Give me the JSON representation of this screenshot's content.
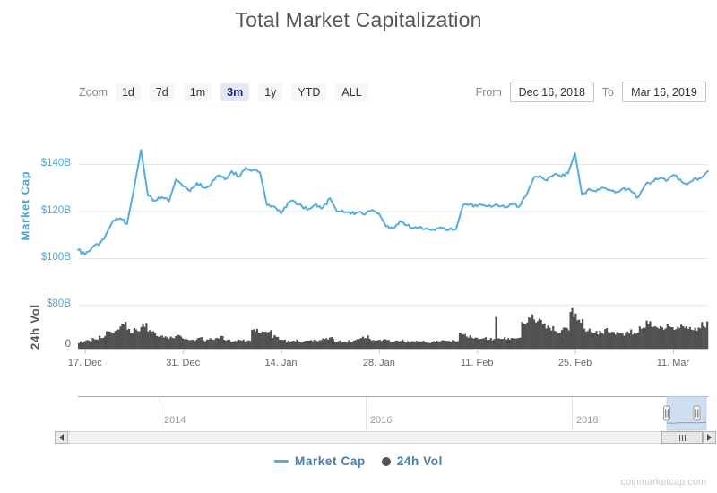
{
  "title": "Total Market Capitalization",
  "toolbar": {
    "zoom_label": "Zoom",
    "buttons": [
      "1d",
      "7d",
      "1m",
      "3m",
      "1y",
      "YTD",
      "ALL"
    ],
    "selected": "3m",
    "from_label": "From",
    "from_value": "Dec 16, 2018",
    "to_label": "To",
    "to_value": "Mar 16, 2019"
  },
  "chart_data": [
    {
      "type": "line",
      "name": "Market Cap",
      "ylabel": "Market Cap",
      "unit": "USD billions",
      "color": "#55ACDE",
      "start_date": "Dec 16, 2018",
      "end_date": "Mar 16, 2019",
      "interval": "daily",
      "ylim": [
        95,
        150
      ],
      "grid": true,
      "y_axis": {
        "ticks": [
          {
            "label": "$140B",
            "value": 140,
            "color": "#4BA6DA"
          },
          {
            "label": "$120B",
            "value": 120,
            "color": "#4BA6DA"
          },
          {
            "label": "$100B",
            "value": 100,
            "color": "#4BA6DA"
          }
        ]
      },
      "x_ticks": [
        {
          "label": "17. Dec",
          "day": 1
        },
        {
          "label": "31. Dec",
          "day": 15
        },
        {
          "label": "14. Jan",
          "day": 29
        },
        {
          "label": "28. Jan",
          "day": 43
        },
        {
          "label": "11. Feb",
          "day": 57
        },
        {
          "label": "25. Feb",
          "day": 71
        },
        {
          "label": "11. Mar",
          "day": 85
        }
      ],
      "values": [
        103.5,
        101.5,
        104.5,
        105.5,
        110.0,
        116.0,
        117.0,
        114.5,
        129.5,
        146.0,
        126.5,
        124.5,
        126.0,
        124.0,
        133.5,
        130.5,
        128.5,
        132.0,
        130.0,
        131.5,
        135.0,
        133.5,
        137.0,
        134.5,
        138.5,
        137.5,
        136.5,
        122.5,
        122.0,
        119.0,
        123.5,
        124.0,
        122.0,
        121.0,
        123.0,
        121.5,
        125.5,
        119.8,
        119.5,
        118.8,
        119.5,
        118.5,
        120.5,
        119.0,
        113.5,
        112.5,
        115.8,
        114.0,
        112.8,
        113.3,
        112.3,
        111.8,
        112.8,
        112.0,
        112.3,
        122.5,
        123.0,
        122.0,
        122.6,
        121.8,
        122.3,
        121.5,
        122.8,
        121.8,
        126.5,
        133.5,
        135.0,
        133.0,
        135.5,
        134.5,
        136.0,
        144.5,
        127.0,
        129.5,
        128.3,
        130.0,
        129.0,
        128.2,
        129.8,
        128.5,
        125.8,
        131.0,
        132.5,
        133.8,
        132.8,
        135.3,
        133.5,
        131.3,
        133.8,
        134.0,
        137.0
      ]
    },
    {
      "type": "bar",
      "name": "24h Vol",
      "ylabel": "24h Vol",
      "unit": "USD billions",
      "color": "#515151",
      "start_date": "Dec 16, 2018",
      "end_date": "Mar 16, 2019",
      "interval": "daily",
      "ylim": [
        0,
        80
      ],
      "y_axis": {
        "ticks": [
          {
            "label": "$80B",
            "value": 80,
            "color": "#4BA6DA"
          },
          {
            "label": "0",
            "value": 0,
            "color": "#666666"
          }
        ]
      },
      "values": [
        12,
        14,
        18,
        21,
        28,
        34,
        45,
        32,
        35,
        42,
        31,
        25,
        22,
        20,
        23,
        18,
        16,
        19,
        15,
        17,
        21,
        15,
        14,
        16,
        14,
        33,
        29,
        31,
        23,
        15,
        13,
        15,
        13,
        14,
        15,
        17,
        19,
        14,
        13,
        14,
        18,
        22,
        17,
        15,
        16,
        14,
        15,
        13,
        14,
        13,
        12,
        13,
        14,
        13,
        15,
        27,
        23,
        20,
        19,
        18,
        58,
        19,
        18,
        20,
        45,
        55,
        50,
        42,
        36,
        31,
        35,
        67,
        48,
        36,
        31,
        29,
        33,
        28,
        26,
        31,
        29,
        39,
        46,
        41,
        37,
        43,
        39,
        41,
        37,
        35,
        44
      ]
    }
  ],
  "navigator": {
    "year_labels": [
      "2014",
      "2016",
      "2018"
    ]
  },
  "legend": [
    {
      "label": "Market Cap",
      "marker": "line",
      "color": "#55ACDE"
    },
    {
      "label": "24h Vol",
      "marker": "circle",
      "color": "#555555"
    }
  ],
  "watermark": "coinmarketcap.com",
  "colors": {
    "title": "#565656",
    "axis_blue": "#4BA6DA",
    "grid": "#e7e7e7",
    "axis_line": "#c9c9c9",
    "nav_selection": "#cfdef1",
    "accent": "#55ACDE"
  }
}
